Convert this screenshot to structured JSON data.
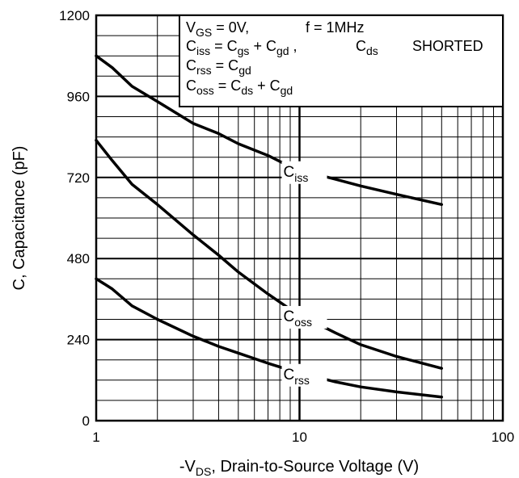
{
  "chart_data": {
    "type": "line",
    "xscale": "log",
    "xlim": [
      1,
      100
    ],
    "ylim": [
      0,
      1200
    ],
    "grid": true,
    "xticks": [
      {
        "value": 1,
        "label": "1"
      },
      {
        "value": 10,
        "label": "10"
      },
      {
        "value": 100,
        "label": "100"
      }
    ],
    "yticks": [
      {
        "value": 0,
        "label": "0"
      },
      {
        "value": 240,
        "label": "240"
      },
      {
        "value": 480,
        "label": "480"
      },
      {
        "value": 720,
        "label": "720"
      },
      {
        "value": 960,
        "label": "960"
      },
      {
        "value": 1200,
        "label": "1200"
      }
    ],
    "xlabel": {
      "prefix": "-V",
      "sub": "DS",
      "suffix": ", Drain-to-Source Voltage (V)"
    },
    "ylabel": "C, Capacitance (pF)",
    "legend_box": {
      "line1": {
        "a": "V",
        "a_sub": "GS",
        "b": " = 0V,",
        "c": "f = 1MHz"
      },
      "line2": {
        "a": "C",
        "a_sub": "iss",
        "b": " = C",
        "b_sub": "gs",
        "c": " + C",
        "c_sub": "gd",
        "d": " ,",
        "e": "C",
        "e_sub": "ds",
        "f": "SHORTED"
      },
      "line3": {
        "a": "C",
        "a_sub": "rss",
        "b": " = C",
        "b_sub": "gd"
      },
      "line4": {
        "a": "C",
        "a_sub": "oss",
        "b": " = C",
        "b_sub": "ds",
        "c": " + C",
        "c_sub": "gd"
      }
    },
    "series": [
      {
        "name": "Ciss",
        "label_main": "C",
        "label_sub": "iss",
        "x": [
          1,
          1.2,
          1.5,
          2,
          3,
          4,
          5,
          7,
          9.5,
          15,
          20,
          30,
          50
        ],
        "y": [
          1080,
          1045,
          990,
          945,
          880,
          850,
          820,
          785,
          745,
          715,
          695,
          670,
          640
        ]
      },
      {
        "name": "Coss",
        "label_main": "C",
        "label_sub": "oss",
        "x": [
          1,
          1.2,
          1.5,
          2,
          3,
          4,
          5,
          7,
          9.5,
          15,
          20,
          30,
          50
        ],
        "y": [
          830,
          770,
          700,
          640,
          550,
          490,
          440,
          375,
          320,
          260,
          225,
          190,
          155
        ]
      },
      {
        "name": "Crss",
        "label_main": "C",
        "label_sub": "rss",
        "x": [
          1,
          1.2,
          1.5,
          2,
          3,
          4,
          5,
          7,
          9.5,
          15,
          20,
          30,
          50
        ],
        "y": [
          420,
          390,
          340,
          300,
          250,
          220,
          200,
          170,
          145,
          115,
          100,
          85,
          70
        ]
      }
    ]
  }
}
